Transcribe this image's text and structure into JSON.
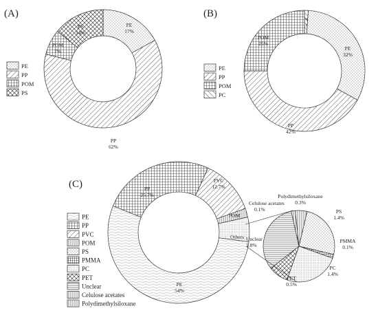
{
  "figure_labels": {
    "a": "(A)",
    "b": "(B)",
    "c": "(C)"
  },
  "chart_data": [
    {
      "type": "pie",
      "variant": "donut",
      "panel": "(A)",
      "slices": [
        {
          "name": "PE",
          "label": "PE",
          "value_text": "17%",
          "value": 17
        },
        {
          "name": "PP",
          "label": "PP",
          "value_text": "62%",
          "value": 62
        },
        {
          "name": "POM",
          "label": "POM",
          "value_text": "7%",
          "value": 7
        },
        {
          "name": "PS",
          "label": "PS",
          "value_text": "14%",
          "value": 14
        }
      ],
      "legend": [
        "PE",
        "PP",
        "POM",
        "PS"
      ],
      "legend_position": "left"
    },
    {
      "type": "pie",
      "variant": "donut",
      "panel": "(B)",
      "slices": [
        {
          "name": "PC",
          "label": "PC",
          "value_text": "1%",
          "value": 1
        },
        {
          "name": "PE",
          "label": "PE",
          "value_text": "32%",
          "value": 32
        },
        {
          "name": "PP",
          "label": "PP",
          "value_text": "42%",
          "value": 42
        },
        {
          "name": "POM",
          "label": "POM",
          "value_text": "25%",
          "value": 25
        }
      ],
      "legend": [
        "PE",
        "PP",
        "POM",
        "PC"
      ],
      "legend_position": "left"
    },
    {
      "type": "pie",
      "variant": "donut",
      "panel": "(C)",
      "slices": [
        {
          "name": "PP",
          "label": "PP",
          "value_text": "25.7%",
          "value": 25.7
        },
        {
          "name": "PVC",
          "label": "PVC",
          "value_text": "12.7%",
          "value": 12.7
        },
        {
          "name": "POM",
          "label": "POM",
          "value_text": "2%",
          "value": 2
        },
        {
          "name": "Others",
          "label": "Others",
          "value_text": "5.6%",
          "value": 5.6
        },
        {
          "name": "PE",
          "label": "PE",
          "value_text": "54%",
          "value": 54
        }
      ],
      "legend": [
        "PE",
        "PP",
        "PVC",
        "POM",
        "PS",
        "PMMA",
        "PC",
        "PET",
        "Unclear",
        "Celulose acetates",
        "Polydimethylsiloxane"
      ],
      "legend_position": "left"
    },
    {
      "type": "pie",
      "panel": "(C) breakdown of Others",
      "slices": [
        {
          "name": "Polydimethylsiloxane",
          "label": "Polydimethylsiloxane",
          "value_text": "0.3%",
          "value": 0.3
        },
        {
          "name": "PS",
          "label": "PS",
          "value_text": "1.4%",
          "value": 1.4
        },
        {
          "name": "PMMA",
          "label": "PMMA",
          "value_text": "0.1%",
          "value": 0.1
        },
        {
          "name": "PC",
          "label": "PC",
          "value_text": "1.4%",
          "value": 1.4
        },
        {
          "name": "PET",
          "label": "PET",
          "value_text": "0.5%",
          "value": 0.5
        },
        {
          "name": "Unclear",
          "label": "Unclear",
          "value_text": "1.8%",
          "value": 1.8
        },
        {
          "name": "Celulose acetates",
          "label": "Celulose acetates",
          "value_text": "0.1%",
          "value": 0.1
        }
      ]
    }
  ]
}
